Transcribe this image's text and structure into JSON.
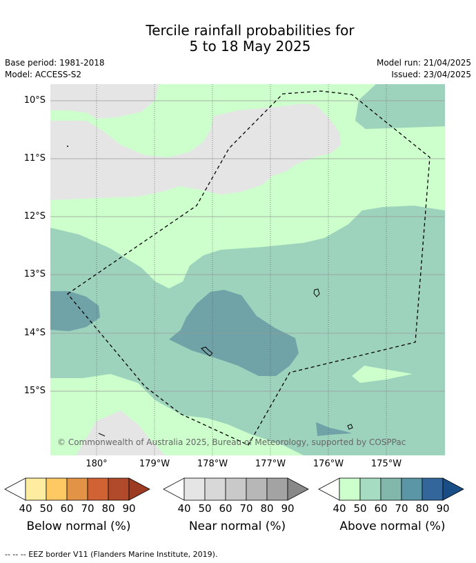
{
  "header": {
    "title_line1": "Tercile rainfall probabilities for",
    "title_line2": "5 to 18 May 2025",
    "base_period": "Base period: 1981-2018",
    "model": "Model: ACCESS-S2",
    "model_run": "Model run: 21/04/2025",
    "issued": "Issued: 23/04/2025"
  },
  "map": {
    "lat_labels": [
      "10°S",
      "11°S",
      "12°S",
      "13°S",
      "14°S",
      "15°S"
    ],
    "lon_labels": [
      "180°",
      "179°W",
      "178°W",
      "177°W",
      "176°W",
      "175°W"
    ],
    "copyright": "© Commonwealth of Australia 2025, Bureau of Meteorology, supported by COSPPac",
    "colors": {
      "near_normal_40": "#e5e5e5",
      "above_40": "#ccffcc",
      "above_50": "#9dd2bc",
      "above_60": "#6fa3a8"
    }
  },
  "legend": {
    "ticks": [
      "40",
      "50",
      "60",
      "70",
      "80",
      "90"
    ],
    "below": {
      "title": "Below normal (%)",
      "colors": [
        "#feeda0",
        "#fec862",
        "#e29346",
        "#d06233",
        "#b04a2a",
        "#9c3a22"
      ]
    },
    "near": {
      "title": "Near normal (%)",
      "colors": [
        "#e5e5e5",
        "#d8d8d8",
        "#c9c9c9",
        "#b7b7b7",
        "#a3a3a3",
        "#888888"
      ]
    },
    "above": {
      "title": "Above normal (%)",
      "colors": [
        "#ccffcc",
        "#a6dcc1",
        "#82b8ac",
        "#5b96a6",
        "#33679c",
        "#194d86"
      ]
    }
  },
  "footer": {
    "eez_note": "-- -- -- EEZ border V11 (Flanders Marine Institute, 2019)."
  }
}
